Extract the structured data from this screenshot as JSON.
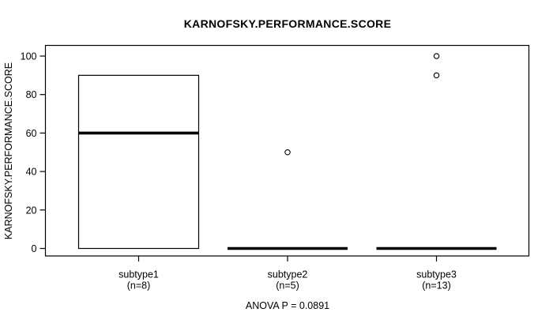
{
  "chart_data": {
    "type": "boxplot",
    "title": "KARNOFSKY.PERFORMANCE.SCORE",
    "ylabel": "KARNOFSKY.PERFORMANCE.SCORE",
    "xlabel": "",
    "footer": "ANOVA P = 0.0891",
    "ylim": [
      0,
      100
    ],
    "yticks": [
      0,
      20,
      40,
      60,
      80,
      100
    ],
    "grid": false,
    "legend": null,
    "groups": [
      {
        "label": "subtype1",
        "count_label": "(n=8)",
        "n": 8,
        "box": {
          "q1": 0,
          "median": 60,
          "q3": 90,
          "whisker_low": 0,
          "whisker_high": 90
        },
        "outliers": []
      },
      {
        "label": "subtype2",
        "count_label": "(n=5)",
        "n": 5,
        "box": {
          "q1": 0,
          "median": 0,
          "q3": 0,
          "whisker_low": 0,
          "whisker_high": 0
        },
        "outliers": [
          50
        ]
      },
      {
        "label": "subtype3",
        "count_label": "(n=13)",
        "n": 13,
        "box": {
          "q1": 0,
          "median": 0,
          "q3": 0,
          "whisker_low": 0,
          "whisker_high": 0
        },
        "outliers": [
          90,
          100
        ]
      }
    ],
    "colors": {
      "stroke": "#000000",
      "box_fill": "#ffffff",
      "background": "#ffffff"
    }
  }
}
